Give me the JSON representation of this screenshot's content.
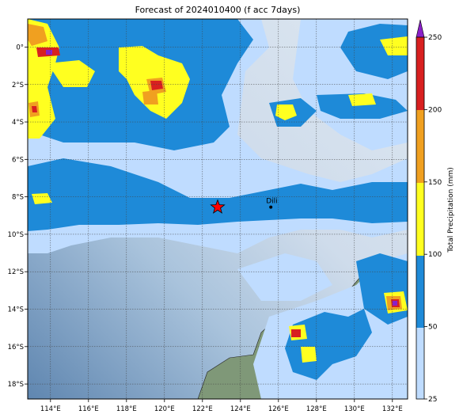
{
  "title": "Forecast of 2024010400 (f acc 7days)",
  "colors": {
    "c25": "#bfdcff",
    "c50": "#1e8ad8",
    "c100": "#ffff20",
    "c150": "#f0a020",
    "c200": "#d82020",
    "c250": "#8a20c8",
    "grid": "#444444",
    "sea_light": "#d2e0ee",
    "sea_dark": "#6e92b8",
    "land": "#7f9878"
  },
  "map": {
    "lon_range": [
      112.8,
      132.8
    ],
    "lat_range": [
      -18.8,
      1.5
    ],
    "x_ticks": [
      {
        "value": 114,
        "label": "114°E"
      },
      {
        "value": 116,
        "label": "116°E"
      },
      {
        "value": 118,
        "label": "118°E"
      },
      {
        "value": 120,
        "label": "120°E"
      },
      {
        "value": 122,
        "label": "122°E"
      },
      {
        "value": 124,
        "label": "124°E"
      },
      {
        "value": 126,
        "label": "126°E"
      },
      {
        "value": 128,
        "label": "128°E"
      },
      {
        "value": 130,
        "label": "130°E"
      },
      {
        "value": 132,
        "label": "132°E"
      }
    ],
    "y_ticks": [
      {
        "value": 0,
        "label": "0°"
      },
      {
        "value": -2,
        "label": "2°S"
      },
      {
        "value": -4,
        "label": "4°S"
      },
      {
        "value": -6,
        "label": "6°S"
      },
      {
        "value": -8,
        "label": "8°S"
      },
      {
        "value": -10,
        "label": "10°S"
      },
      {
        "value": -12,
        "label": "12°S"
      },
      {
        "value": -14,
        "label": "14°S"
      },
      {
        "value": -16,
        "label": "16°S"
      },
      {
        "value": -18,
        "label": "18°S"
      }
    ],
    "star": {
      "lon": 122.8,
      "lat": -8.55
    },
    "cities": [
      {
        "name": "Dili",
        "lon": 125.6,
        "lat": -8.55
      }
    ]
  },
  "colorbar": {
    "label": "Total Precipitation (mm)",
    "ticks": [
      {
        "value": 25,
        "label": "25"
      },
      {
        "value": 50,
        "label": "50"
      },
      {
        "value": 100,
        "label": "100"
      },
      {
        "value": 150,
        "label": "150"
      },
      {
        "value": 200,
        "label": "200"
      },
      {
        "value": 250,
        "label": "250"
      }
    ]
  }
}
